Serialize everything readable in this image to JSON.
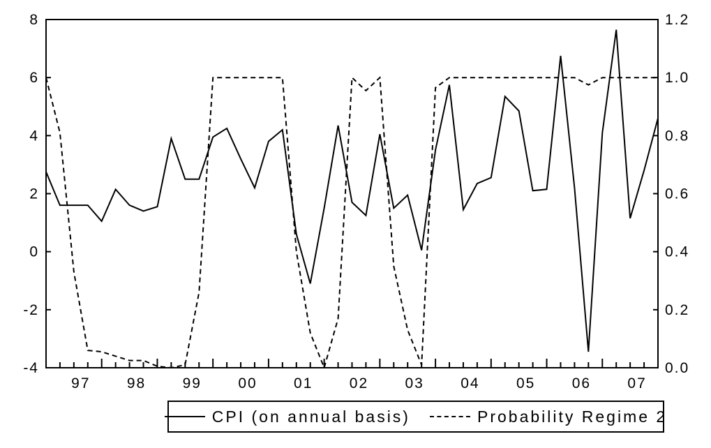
{
  "chart_data": {
    "type": "line",
    "x": [
      "1996Q4",
      "1997Q1",
      "1997Q2",
      "1997Q3",
      "1997Q4",
      "1998Q1",
      "1998Q2",
      "1998Q3",
      "1998Q4",
      "1999Q1",
      "1999Q2",
      "1999Q3",
      "1999Q4",
      "2000Q1",
      "2000Q2",
      "2000Q3",
      "2000Q4",
      "2001Q1",
      "2001Q2",
      "2001Q3",
      "2001Q4",
      "2002Q1",
      "2002Q2",
      "2002Q3",
      "2002Q4",
      "2003Q1",
      "2003Q2",
      "2003Q3",
      "2003Q4",
      "2004Q1",
      "2004Q2",
      "2004Q3",
      "2004Q4",
      "2005Q1",
      "2005Q2",
      "2005Q3",
      "2005Q4",
      "2006Q1",
      "2006Q2",
      "2006Q3",
      "2006Q4",
      "2007Q1",
      "2007Q2",
      "2007Q3",
      "2007Q4"
    ],
    "x_tick_labels": [
      "97",
      "98",
      "99",
      "00",
      "01",
      "02",
      "03",
      "04",
      "05",
      "06",
      "07"
    ],
    "y_left": {
      "ylim": [
        -4,
        8
      ],
      "ticks": [
        "-4",
        "-2",
        "0",
        "2",
        "4",
        "6",
        "8"
      ]
    },
    "y_right": {
      "ylim": [
        0.0,
        1.2
      ],
      "ticks": [
        "0.0",
        "0.2",
        "0.4",
        "0.6",
        "0.8",
        "1.0",
        "1.2"
      ]
    },
    "series": [
      {
        "name": "CPI (on annual basis)",
        "axis": "left",
        "style": "solid",
        "values": [
          2.75,
          1.6,
          1.6,
          1.6,
          1.05,
          2.15,
          1.6,
          1.4,
          1.55,
          3.9,
          2.5,
          2.5,
          3.95,
          4.25,
          3.2,
          2.2,
          3.8,
          4.2,
          0.6,
          -1.1,
          1.5,
          4.35,
          1.7,
          1.25,
          4.05,
          1.5,
          1.95,
          0.05,
          3.5,
          5.75,
          1.45,
          2.35,
          2.55,
          5.35,
          4.85,
          2.1,
          2.15,
          6.75,
          2.2,
          -3.45,
          4.1,
          7.65,
          1.15,
          2.8,
          4.6
        ]
      },
      {
        "name": "Probability Regime 2",
        "axis": "right",
        "style": "dashed",
        "values": [
          1.0,
          0.81,
          0.33,
          0.06,
          0.055,
          0.04,
          0.025,
          0.025,
          0.005,
          0.0,
          0.01,
          0.26,
          1.0,
          1.0,
          1.0,
          1.0,
          1.0,
          1.0,
          0.4,
          0.12,
          0.0,
          0.17,
          1.0,
          0.955,
          1.0,
          0.35,
          0.13,
          0.01,
          0.965,
          1.0,
          1.0,
          1.0,
          1.0,
          1.0,
          1.0,
          1.0,
          1.0,
          1.0,
          1.0,
          0.975,
          1.0,
          1.0,
          1.0,
          1.0,
          1.0
        ]
      }
    ],
    "grid": false,
    "legend_position": "bottom"
  }
}
